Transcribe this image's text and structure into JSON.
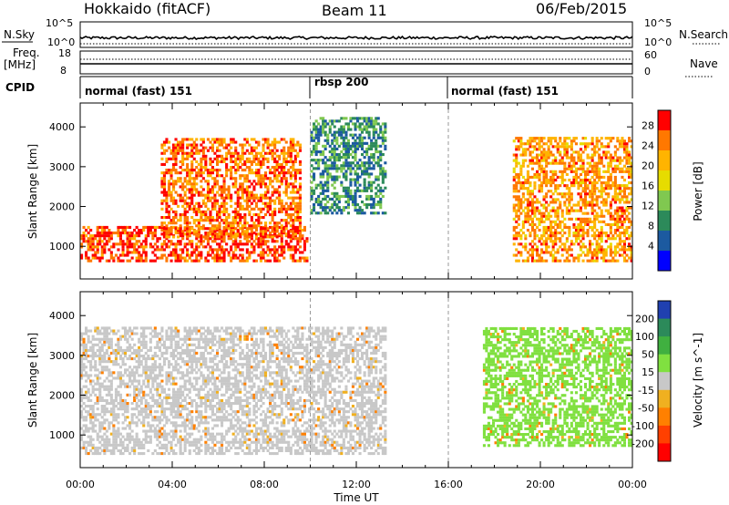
{
  "header": {
    "title": "Hokkaido (fitACF)",
    "beam": "Beam 11",
    "date": "06/Feb/2015"
  },
  "strips": {
    "nsky_label": "N.Sky",
    "nsky_ticks": [
      "10^5",
      "10^0"
    ],
    "nsearch_label": "N.Search",
    "freq_label": "Freq.",
    "freq_unit": "[MHz]",
    "freq_ticks": [
      "18",
      "8"
    ],
    "nave_label": "Nave",
    "nave_ticks": [
      "60",
      "0"
    ],
    "cpid_label": "CPID",
    "cpid_segments": [
      {
        "label": "normal (fast) 151",
        "start": 0,
        "end": 10
      },
      {
        "label": "rbsp 200",
        "start": 10,
        "end": 16
      },
      {
        "label": "normal (fast) 151",
        "start": 16,
        "end": 24
      }
    ]
  },
  "chart_data": [
    {
      "type": "heatmap",
      "title": "",
      "quantity": "Power",
      "xlabel": "Time UT",
      "ylabel": "Slant Range [km]",
      "x_ticks": [
        "00:00",
        "04:00",
        "08:00",
        "12:00",
        "16:00",
        "20:00",
        "00:00"
      ],
      "x_range_hours": [
        0,
        24
      ],
      "y_ticks": [
        1000,
        2000,
        3000,
        4000
      ],
      "ylim": [
        180,
        4600
      ],
      "colorbar": {
        "label": "Power [dB]",
        "ticks": [
          "28",
          "24",
          "20",
          "16",
          "12",
          "8",
          "4"
        ],
        "colors": [
          "#ff0000",
          "#ff7800",
          "#ffb400",
          "#e6dc00",
          "#80c850",
          "#2c8a5a",
          "#1c5aa0",
          "#0000ff"
        ]
      },
      "features": [
        {
          "desc": "near-range band",
          "start_h": 0,
          "end_h": 9.8,
          "range_km": [
            600,
            1500
          ],
          "power_db": 26
        },
        {
          "desc": "oblique streaks",
          "start_h": 3.5,
          "end_h": 9.5,
          "range_km": [
            1200,
            3700
          ],
          "power_db": 24
        },
        {
          "desc": "rbsp scatter",
          "start_h": 10,
          "end_h": 13.2,
          "range_km": [
            1800,
            4200
          ],
          "power_db": 8
        },
        {
          "desc": "ground scatter late",
          "start_h": 18.8,
          "end_h": 24,
          "range_km": [
            600,
            3700
          ],
          "power_db": 22
        }
      ]
    },
    {
      "type": "heatmap",
      "title": "",
      "quantity": "Velocity",
      "xlabel": "Time UT",
      "ylabel": "Slant Range [km]",
      "x_ticks": [
        "00:00",
        "04:00",
        "08:00",
        "12:00",
        "16:00",
        "20:00",
        "00:00"
      ],
      "x_range_hours": [
        0,
        24
      ],
      "y_ticks": [
        1000,
        2000,
        3000,
        4000
      ],
      "ylim": [
        180,
        4600
      ],
      "colorbar": {
        "label": "Velocity [m s^-1]",
        "ticks": [
          "200",
          "100",
          "50",
          "15",
          "-15",
          "-50",
          "-100",
          "-200"
        ],
        "colors": [
          "#2040b0",
          "#2c8a5a",
          "#40b040",
          "#80e040",
          "#c8c8c8",
          "#f0b020",
          "#ff8000",
          "#ff4000",
          "#ff0000"
        ]
      },
      "features": [
        {
          "desc": "grey ground scatter",
          "start_h": 0,
          "end_h": 13.2,
          "range_km": [
            500,
            3700
          ],
          "velocity": 0
        },
        {
          "desc": "green positive",
          "start_h": 17.5,
          "end_h": 24,
          "range_km": [
            700,
            3700
          ],
          "velocity": 40
        }
      ]
    }
  ]
}
